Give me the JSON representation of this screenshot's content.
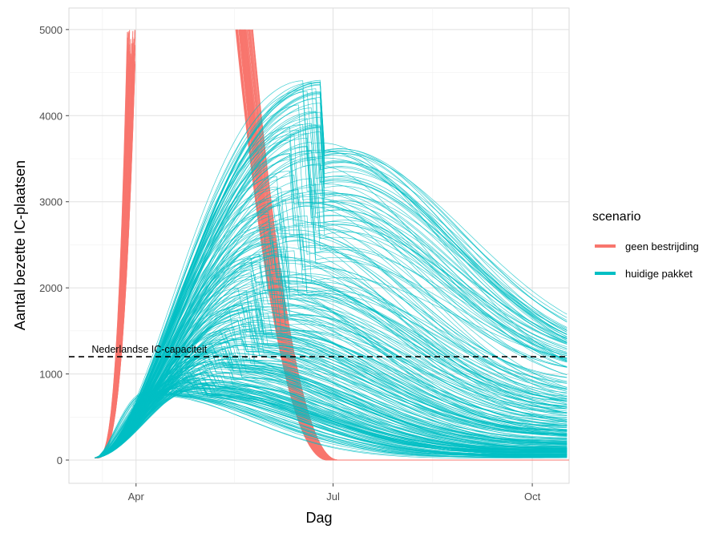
{
  "chart_data": {
    "type": "line",
    "xlabel": "Dag",
    "ylabel": "Aantal bezette IC-plaatsen",
    "x_ticks": [
      {
        "label": "Apr",
        "date": "2020-04-01"
      },
      {
        "label": "Jul",
        "date": "2020-07-01"
      },
      {
        "label": "Oct",
        "date": "2020-10-01"
      }
    ],
    "y_ticks": [
      0,
      1000,
      2000,
      3000,
      4000,
      5000
    ],
    "xlim": [
      "2020-03-01",
      "2020-10-18"
    ],
    "ylim": [
      -270,
      5250
    ],
    "start_date": "2020-03-13",
    "end_date": "2020-10-18",
    "grid": true,
    "legend": {
      "title": "scenario",
      "position": "right",
      "entries": [
        {
          "label": "geen bestrijding",
          "color": "#F8766D"
        },
        {
          "label": "huidige pakket",
          "color": "#00BFC4"
        }
      ]
    },
    "hline": {
      "y": 1200,
      "style": "dashed",
      "label": "Nederlandse IC-capaciteit"
    },
    "series": [
      {
        "scenario": "geen bestrijding",
        "color": "#F8766D",
        "runs": 60,
        "batch_1": {
          "start_date": "2020-03-13",
          "reach_5000_date": "2020-04-01",
          "truncated_at": 5000
        },
        "batch_2": {
          "peak_date": "2020-05-21",
          "peak_value": 5000,
          "decay_to_zero_date": "2020-07-01"
        }
      },
      {
        "scenario": "huidige pakket",
        "color": "#00BFC4",
        "runs": 300,
        "peak_value_range": [
          800,
          4420
        ],
        "peak_date_range": [
          "2020-04-03",
          "2020-06-26"
        ],
        "end_value_range": [
          0,
          830
        ],
        "end_date": "2020-10-18"
      }
    ]
  }
}
